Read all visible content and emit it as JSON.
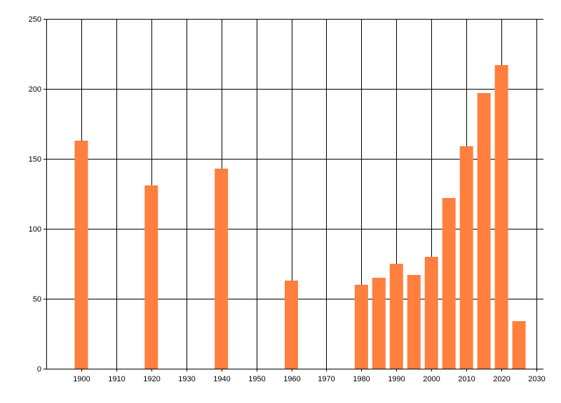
{
  "chart_data": {
    "type": "bar",
    "title": "",
    "xlabel": "",
    "ylabel": "",
    "x": [
      1900,
      1920,
      1940,
      1960,
      1980,
      1985,
      1990,
      1995,
      2000,
      2005,
      2010,
      2015,
      2020,
      2025
    ],
    "values": [
      163,
      131,
      143,
      63,
      60,
      65,
      75,
      67,
      80,
      122,
      159,
      197,
      217,
      34
    ],
    "xlim": [
      1890,
      2032
    ],
    "ylim": [
      0,
      250
    ],
    "x_ticks": [
      1900,
      1910,
      1920,
      1930,
      1940,
      1950,
      1960,
      1970,
      1980,
      1990,
      2000,
      2010,
      2020,
      2030
    ],
    "y_ticks": [
      0,
      50,
      100,
      150,
      200,
      250
    ],
    "grid": true,
    "legend": "none",
    "bar_color": "#FF7F3F",
    "grid_color": "#000000"
  }
}
